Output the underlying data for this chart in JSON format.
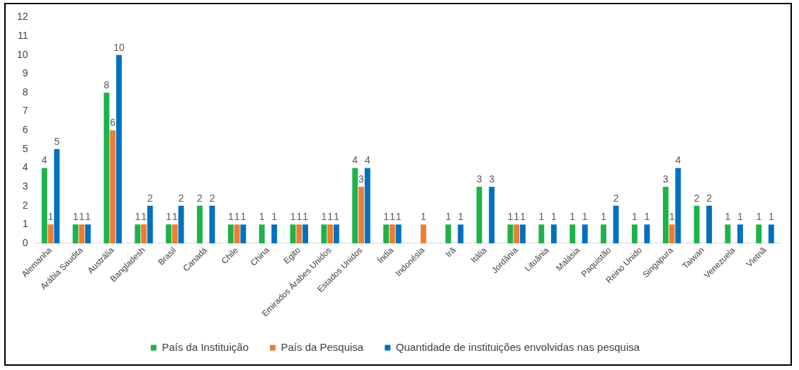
{
  "chart_data": {
    "type": "bar",
    "categories": [
      "Alemanha",
      "Arábia Saudita",
      "Austrália",
      "Bangladesh",
      "Brasil",
      "Canadá",
      "Chile",
      "China",
      "Egito",
      "Emirados Árabes Unidos",
      "Estados Unidos",
      "Índia",
      "Indonésia",
      "Irã",
      "Itália",
      "Jordânia",
      "Lituânia",
      "Malásia",
      "Paquistão",
      "Reino Unido",
      "Singapura",
      "Taiwan",
      "Venezuela",
      "Vietnã"
    ],
    "series": [
      {
        "name": "País da Instituição",
        "color": "#1fb14a",
        "values": [
          4,
          1,
          8,
          1,
          1,
          2,
          1,
          1,
          1,
          1,
          4,
          1,
          null,
          1,
          3,
          1,
          1,
          1,
          1,
          1,
          3,
          2,
          1,
          1
        ]
      },
      {
        "name": "País da Pesquisa",
        "color": "#ed7d31",
        "values": [
          1,
          1,
          6,
          1,
          1,
          null,
          1,
          null,
          1,
          1,
          3,
          1,
          1,
          null,
          null,
          1,
          null,
          null,
          null,
          null,
          1,
          null,
          null,
          null
        ]
      },
      {
        "name": "Quantidade de instituições envolvidas nas pesquisa",
        "color": "#0070c0",
        "values": [
          5,
          1,
          10,
          2,
          2,
          2,
          1,
          1,
          1,
          1,
          4,
          1,
          null,
          1,
          3,
          1,
          1,
          1,
          2,
          1,
          4,
          2,
          1,
          1
        ]
      }
    ],
    "ylim": [
      0,
      12
    ],
    "yticks": [
      0,
      1,
      2,
      3,
      4,
      5,
      6,
      7,
      8,
      9,
      10,
      11,
      12
    ],
    "grid": false,
    "legend": "bottom",
    "data_labels": true
  }
}
